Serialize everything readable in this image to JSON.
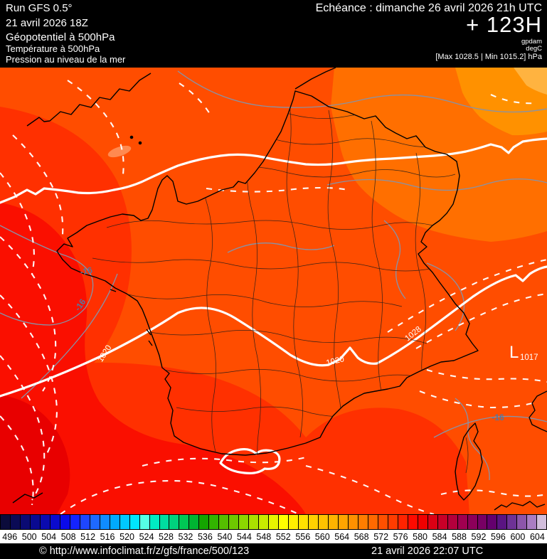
{
  "header": {
    "run": "Run GFS 0.5°",
    "run_date": "21 avril 2026 18Z",
    "param_geopotential": "Géopotentiel à 500hPa",
    "param_temperature": "Température à 500hPa",
    "param_pressure": "Pression au niveau de la mer",
    "echeance": "Echéance : dimanche 26 avril 2026 21h UTC",
    "forecast_hour": "+ 123H",
    "unit_geopotential": "gpdam",
    "unit_temperature": "degC",
    "maxmin": "[Max 1028.5 | Min 1015.2] hPa"
  },
  "map": {
    "pressure_labels": [
      {
        "text": "1020"
      },
      {
        "text": "1020"
      },
      {
        "text": "1028"
      }
    ],
    "temperature_labels": [
      {
        "text": "-16"
      },
      {
        "text": "-16"
      },
      {
        "text": "-16"
      }
    ],
    "low_center": {
      "letter": "L",
      "value": "1017"
    }
  },
  "colorbar": {
    "values": [
      "496",
      "500",
      "504",
      "508",
      "512",
      "516",
      "520",
      "524",
      "528",
      "532",
      "536",
      "540",
      "544",
      "548",
      "552",
      "556",
      "560",
      "564",
      "568",
      "572",
      "576",
      "580",
      "584",
      "588",
      "592",
      "596",
      "600",
      "604"
    ],
    "colors": [
      "#0B0B3B",
      "#0A0A55",
      "#0A0A73",
      "#0A0A91",
      "#0A0AAF",
      "#0A0ACD",
      "#0A0AEB",
      "#1423FF",
      "#1E46FF",
      "#1E69FF",
      "#0F8CFF",
      "#00AAFF",
      "#00C8FF",
      "#00E6FF",
      "#55FFE6",
      "#00EBC3",
      "#00DCA0",
      "#00D27D",
      "#00C855",
      "#00B432",
      "#14A500",
      "#32B400",
      "#55BE00",
      "#6EC800",
      "#8CD700",
      "#AAE100",
      "#C8EB00",
      "#E6F500",
      "#FFFF00",
      "#FFF000",
      "#FFE100",
      "#FFD200",
      "#FFC300",
      "#FFB400",
      "#FFA500",
      "#FF9100",
      "#FF7D00",
      "#FF6900",
      "#FF5000",
      "#FF3C00",
      "#FF2300",
      "#FF0A00",
      "#F00000",
      "#DC0014",
      "#C80028",
      "#B4003C",
      "#A00050",
      "#8C005A",
      "#780064",
      "#64006E",
      "#5A1482",
      "#6E3296",
      "#8C55AA",
      "#AA7DC3",
      "#D2BEDC"
    ]
  },
  "footer": {
    "copyright": "© http://www.infoclimat.fr/z/gfs/france/500/123",
    "generated": "21 avril 2026 22:07 UTC"
  }
}
